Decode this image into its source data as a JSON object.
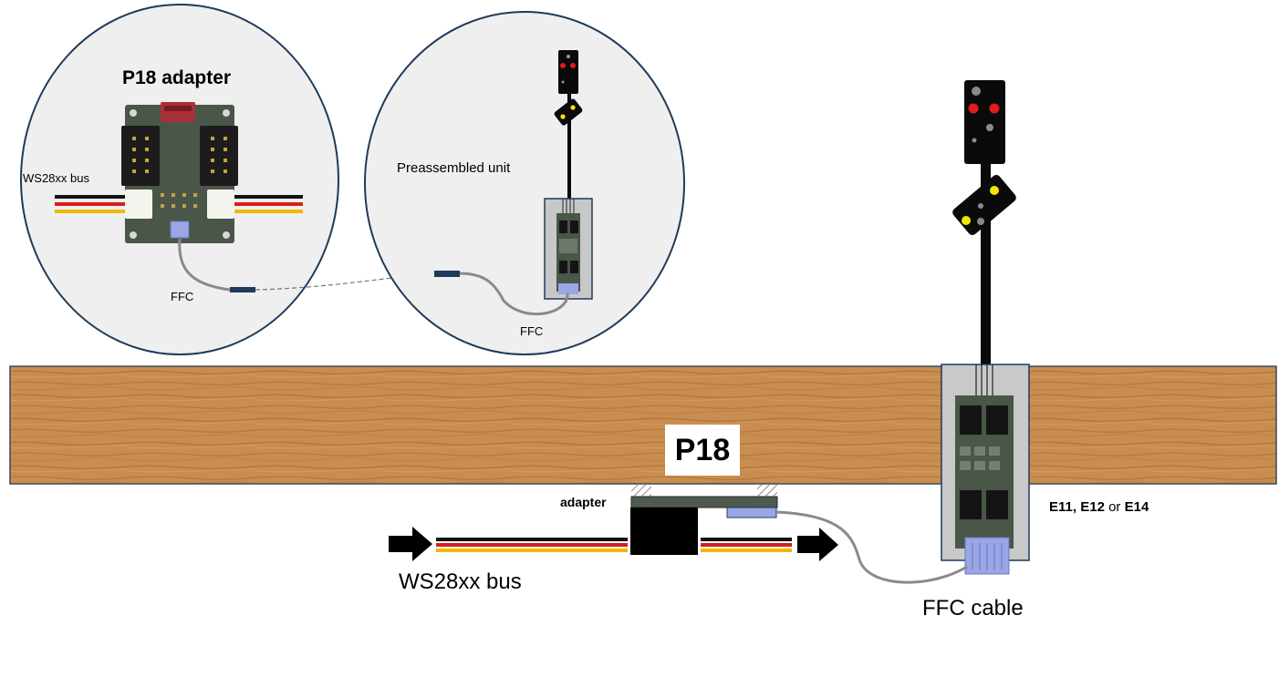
{
  "labels": {
    "p18_adapter_title": "P18 adapter",
    "ws28xx_bus_small": "WS28xx bus",
    "ffc_left": "FFC",
    "preassembled_unit": "Preassembled unit",
    "ffc_middle": "FFC",
    "p18_box": "P18",
    "adapter": "adapter",
    "ws28xx_bus_large": "WS28xx bus",
    "ffc_cable": "FFC cable",
    "decoder_e11": "E11",
    "decoder_sep1": ", ",
    "decoder_e12": "E12",
    "decoder_or": " or ",
    "decoder_e14": "E14"
  },
  "colors": {
    "wood": "#c98d4e",
    "circle_fill": "#efefef",
    "circle_stroke": "#1f3a5a",
    "signal_red": "#e21b1b",
    "signal_yellow": "#f2e600",
    "ffc_connector": "#9aa6e6",
    "pcb": "#4a5648"
  }
}
